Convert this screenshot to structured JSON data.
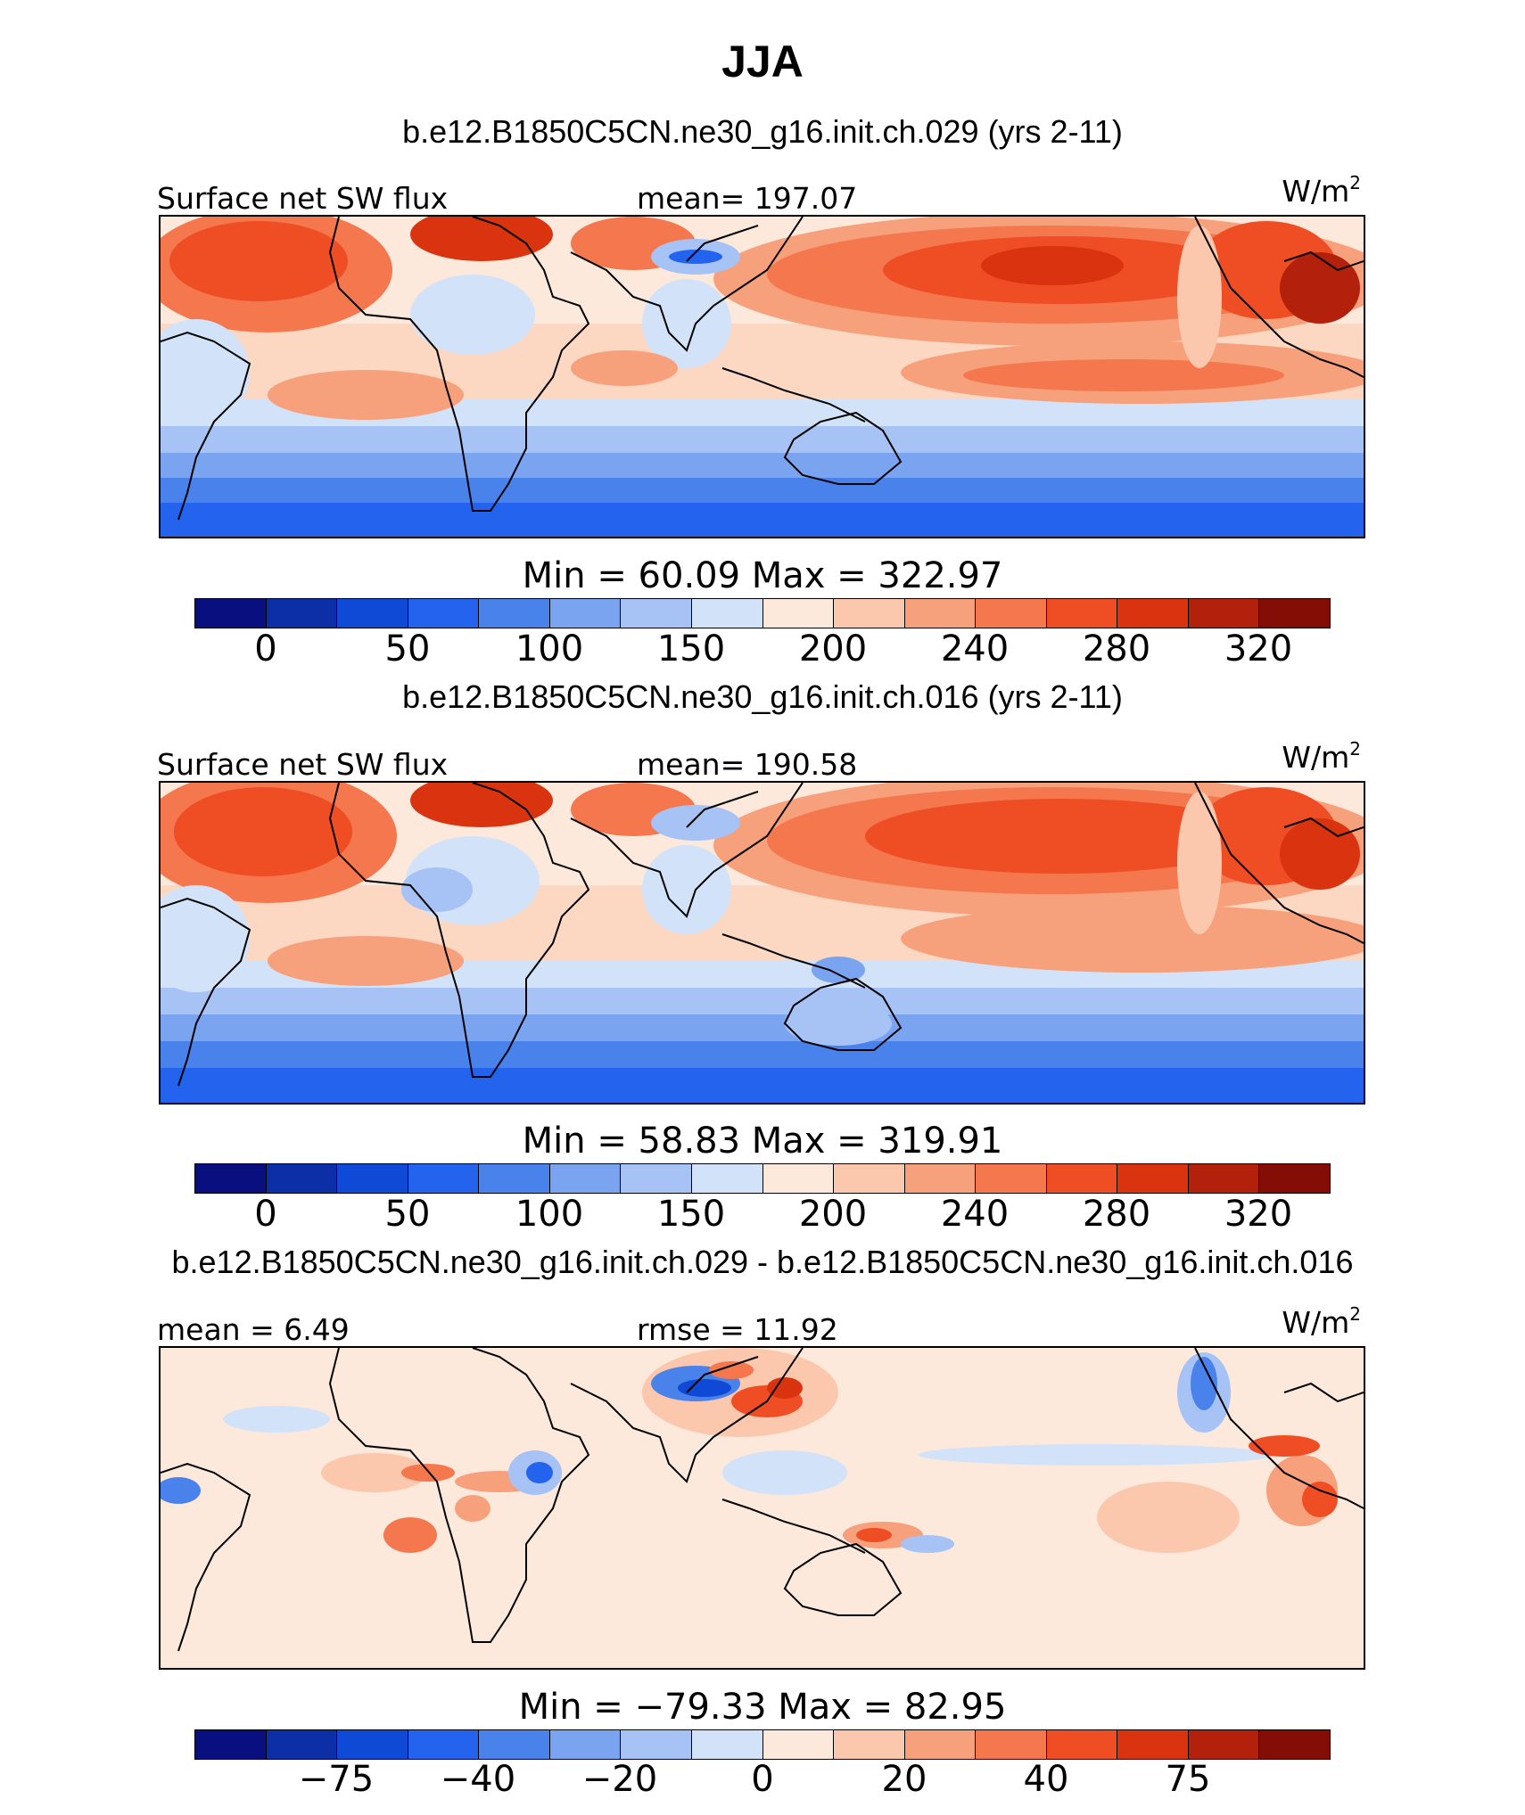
{
  "title": "JJA",
  "colors": {
    "levels": [
      "#0a0f7f",
      "#0c2fa8",
      "#0f4ad6",
      "#2463ee",
      "#4a82ec",
      "#7aa3f0",
      "#a7c2f4",
      "#d2e2f8",
      "#fde9dc",
      "#fbc8ad",
      "#f7a07c",
      "#f4774e",
      "#ef4d24",
      "#d9330f",
      "#b3200b",
      "#840d06"
    ],
    "coast": "#000000"
  },
  "panel1": {
    "case": "b.e12.B1850C5CN.ne30_g16.init.ch.029 (yrs 2-11)",
    "variable": "Surface net SW flux",
    "stat": "mean= 197.07",
    "units": "W/m",
    "units_exp": "2",
    "minmax": "Min  =   60.09  Max  =  322.97",
    "ticks": [
      "0",
      "50",
      "100",
      "150",
      "200",
      "240",
      "280",
      "320"
    ]
  },
  "panel2": {
    "case": "b.e12.B1850C5CN.ne30_g16.init.ch.016 (yrs 2-11)",
    "variable": "Surface net SW flux",
    "stat": "mean= 190.58",
    "units": "W/m",
    "units_exp": "2",
    "minmax": "Min  =   58.83  Max  =  319.91",
    "ticks": [
      "0",
      "50",
      "100",
      "150",
      "200",
      "240",
      "280",
      "320"
    ]
  },
  "panel3": {
    "case": "b.e12.B1850C5CN.ne30_g16.init.ch.029 - b.e12.B1850C5CN.ne30_g16.init.ch.016",
    "stat_left": "mean  =    6.49",
    "stat_mid": "rmse  =    11.92",
    "units": "W/m",
    "units_exp": "2",
    "minmax": "Min  =  −79.33  Max  =   82.95",
    "ticks": [
      "−75",
      "−40",
      "−20",
      "0",
      "20",
      "40",
      "75"
    ]
  }
}
